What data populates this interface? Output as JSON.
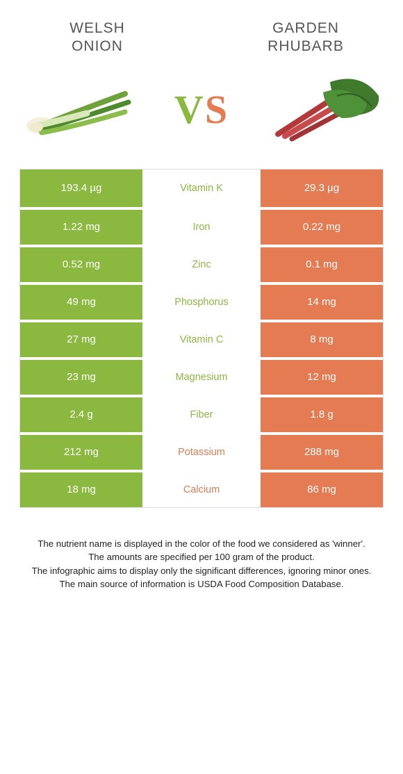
{
  "colors": {
    "left": "#8bb93f",
    "right": "#e57b52",
    "vs_left": "#8bb93f",
    "vs_right": "#e57b52",
    "title": "#555555",
    "foot": "#222222"
  },
  "foods": {
    "left": {
      "line1": "Welsh",
      "line2": "onion"
    },
    "right": {
      "line1": "Garden",
      "line2": "rhubarb"
    }
  },
  "vs": {
    "v": "V",
    "s": "S"
  },
  "rows": [
    {
      "left": "193.4 µg",
      "label": "Vitamin K",
      "right": "29.3 µg",
      "winner": "left"
    },
    {
      "left": "1.22 mg",
      "label": "Iron",
      "right": "0.22 mg",
      "winner": "left"
    },
    {
      "left": "0.52 mg",
      "label": "Zinc",
      "right": "0.1 mg",
      "winner": "left"
    },
    {
      "left": "49 mg",
      "label": "Phosphorus",
      "right": "14 mg",
      "winner": "left"
    },
    {
      "left": "27 mg",
      "label": "Vitamin C",
      "right": "8 mg",
      "winner": "left"
    },
    {
      "left": "23 mg",
      "label": "Magnesium",
      "right": "12 mg",
      "winner": "left"
    },
    {
      "left": "2.4 g",
      "label": "Fiber",
      "right": "1.8 g",
      "winner": "left"
    },
    {
      "left": "212 mg",
      "label": "Potassium",
      "right": "288 mg",
      "winner": "right"
    },
    {
      "left": "18 mg",
      "label": "Calcium",
      "right": "86 mg",
      "winner": "right"
    }
  ],
  "footnotes": [
    "The nutrient name is displayed in the color of the food we considered as 'winner'.",
    "The amounts are specified per 100 gram of the product.",
    "The infographic aims to display only the significant differences, ignoring minor ones.",
    "The main source of information is USDA Food Composition Database."
  ]
}
